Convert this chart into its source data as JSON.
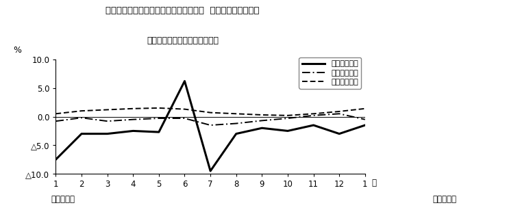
{
  "title_line1": "第４図　賃金、労働時間、常用雇用指数  対前年同月比の推移",
  "title_line2": "（規模５人以上　調査産業計）",
  "xlabel_left": "平成２４年",
  "xlabel_right": "平成２５年",
  "x_labels": [
    "1",
    "2",
    "3",
    "4",
    "5",
    "6",
    "7",
    "8",
    "9",
    "10",
    "11",
    "12",
    "1"
  ],
  "x_last_label": "月",
  "ylabel_percent": "%",
  "ylim": [
    -10.0,
    10.0
  ],
  "ytick_labels": [
    "10.0",
    "5.0",
    "0.0",
    "△5.0",
    "△10.0"
  ],
  "series": {
    "現金給与総額": {
      "values": [
        -7.5,
        -3.0,
        -3.0,
        -2.5,
        -2.7,
        6.2,
        -9.5,
        -3.0,
        -2.0,
        -2.5,
        -1.5,
        -3.0,
        -1.5
      ],
      "linestyle": "solid",
      "linewidth": 2.2,
      "color": "#000000"
    },
    "総実労働時間": {
      "values": [
        -0.8,
        -0.2,
        -0.8,
        -0.5,
        -0.3,
        -0.3,
        -1.5,
        -1.2,
        -0.7,
        -0.3,
        0.2,
        0.5,
        -0.5
      ],
      "linestyle": "dashdot",
      "linewidth": 1.4,
      "color": "#000000"
    },
    "常用雇用指数": {
      "values": [
        0.5,
        1.0,
        1.2,
        1.4,
        1.5,
        1.3,
        0.7,
        0.5,
        0.3,
        0.2,
        0.5,
        0.9,
        1.4
      ],
      "linestyle": "dashed",
      "linewidth": 1.4,
      "color": "#000000"
    }
  },
  "legend_labels": [
    "現金給与総額",
    "総実労働時間",
    "常用雇用指数"
  ],
  "background_color": "#ffffff"
}
